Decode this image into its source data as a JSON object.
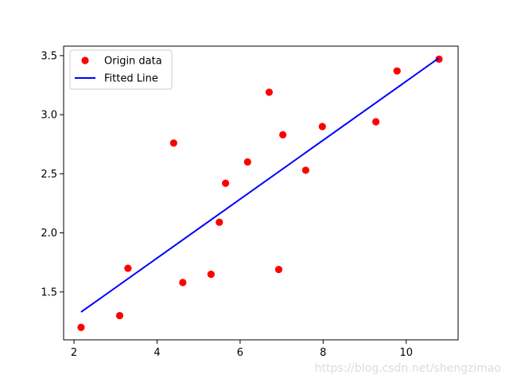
{
  "chart_data": {
    "type": "scatter",
    "title": "",
    "xlabel": "",
    "ylabel": "",
    "xlim": [
      1.75,
      11.25
    ],
    "ylim": [
      1.095,
      3.58
    ],
    "xticks": [
      2,
      4,
      6,
      8,
      10
    ],
    "yticks": [
      1.5,
      2.0,
      2.5,
      3.0,
      3.5
    ],
    "xtick_labels": [
      "2",
      "4",
      "6",
      "8",
      "10"
    ],
    "ytick_labels": [
      "1.5",
      "2.0",
      "2.5",
      "3.0",
      "3.5"
    ],
    "grid": false,
    "legend_position": "upper-left",
    "series": [
      {
        "name": "Origin data",
        "kind": "points",
        "color": "#ff0000",
        "points": [
          [
            2.17,
            1.2
          ],
          [
            3.1,
            1.3
          ],
          [
            3.3,
            1.7
          ],
          [
            4.4,
            2.76
          ],
          [
            4.62,
            1.58
          ],
          [
            5.3,
            1.65
          ],
          [
            5.5,
            2.09
          ],
          [
            5.65,
            2.42
          ],
          [
            6.18,
            2.6
          ],
          [
            6.7,
            3.19
          ],
          [
            6.93,
            1.69
          ],
          [
            7.03,
            2.83
          ],
          [
            7.58,
            2.53
          ],
          [
            7.98,
            2.9
          ],
          [
            9.27,
            2.94
          ],
          [
            9.78,
            3.37
          ],
          [
            10.79,
            3.47
          ]
        ]
      },
      {
        "name": "Fitted Line",
        "kind": "line",
        "color": "#0000ff",
        "points": [
          [
            2.17,
            1.33
          ],
          [
            10.79,
            3.48
          ]
        ]
      }
    ],
    "watermark": "https://blog.csdn.net/shengzimao"
  }
}
